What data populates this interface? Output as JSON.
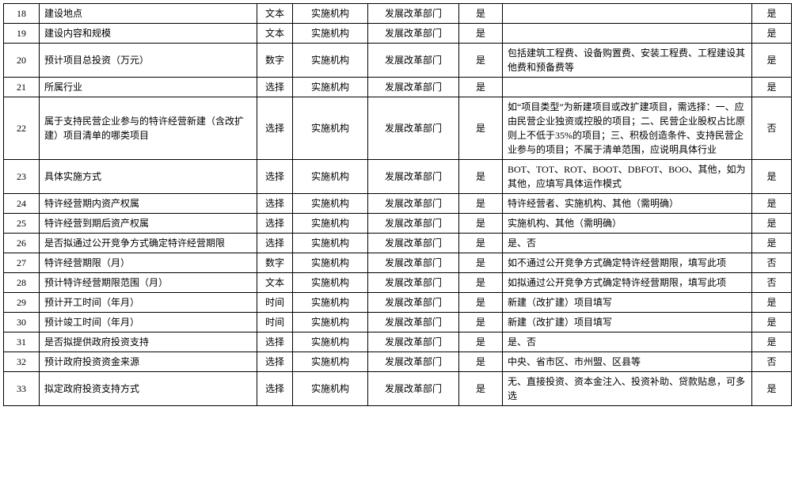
{
  "table": {
    "rows": [
      {
        "num": "18",
        "desc": "建设地点",
        "type": "文本",
        "org": "实施机构",
        "dept": "发展改革部门",
        "bool1": "是",
        "note": "",
        "bool2": "是"
      },
      {
        "num": "19",
        "desc": "建设内容和规模",
        "type": "文本",
        "org": "实施机构",
        "dept": "发展改革部门",
        "bool1": "是",
        "note": "",
        "bool2": "是"
      },
      {
        "num": "20",
        "desc": "预计项目总投资（万元）",
        "type": "数字",
        "org": "实施机构",
        "dept": "发展改革部门",
        "bool1": "是",
        "note": "包括建筑工程费、设备购置费、安装工程费、工程建设其他费和预备费等",
        "bool2": "是"
      },
      {
        "num": "21",
        "desc": "所属行业",
        "type": "选择",
        "org": "实施机构",
        "dept": "发展改革部门",
        "bool1": "是",
        "note": "",
        "bool2": "是"
      },
      {
        "num": "22",
        "desc": "属于支持民营企业参与的特许经营新建（含改扩建）项目清单的哪类项目",
        "type": "选择",
        "org": "实施机构",
        "dept": "发展改革部门",
        "bool1": "是",
        "note": "如“项目类型”为新建项目或改扩建项目，需选择：一、应由民营企业独资或控股的项目；二、民营企业股权占比原则上不低于35%的项目；三、积极创造条件、支持民营企业参与的项目；不属于清单范围，应说明具体行业",
        "bool2": "否"
      },
      {
        "num": "23",
        "desc": "具体实施方式",
        "type": "选择",
        "org": "实施机构",
        "dept": "发展改革部门",
        "bool1": "是",
        "note": "BOT、TOT、ROT、BOOT、DBFOT、BOO、其他，如为其他，应填写具体运作模式",
        "bool2": "是"
      },
      {
        "num": "24",
        "desc": "特许经营期内资产权属",
        "type": "选择",
        "org": "实施机构",
        "dept": "发展改革部门",
        "bool1": "是",
        "note": "特许经营者、实施机构、其他（需明确）",
        "bool2": "是"
      },
      {
        "num": "25",
        "desc": "特许经营到期后资产权属",
        "type": "选择",
        "org": "实施机构",
        "dept": "发展改革部门",
        "bool1": "是",
        "note": "实施机构、其他（需明确）",
        "bool2": "是"
      },
      {
        "num": "26",
        "desc": "是否拟通过公开竞争方式确定特许经营期限",
        "type": "选择",
        "org": "实施机构",
        "dept": "发展改革部门",
        "bool1": "是",
        "note": "是、否",
        "bool2": "是"
      },
      {
        "num": "27",
        "desc": "特许经营期限（月）",
        "type": "数字",
        "org": "实施机构",
        "dept": "发展改革部门",
        "bool1": "是",
        "note": "如不通过公开竞争方式确定特许经营期限，填写此项",
        "bool2": "否"
      },
      {
        "num": "28",
        "desc": "预计特许经营期限范围（月）",
        "type": "文本",
        "org": "实施机构",
        "dept": "发展改革部门",
        "bool1": "是",
        "note": "如拟通过公开竞争方式确定特许经营期限，填写此项",
        "bool2": "否"
      },
      {
        "num": "29",
        "desc": "预计开工时间（年月）",
        "type": "时间",
        "org": "实施机构",
        "dept": "发展改革部门",
        "bool1": "是",
        "note": "新建（改扩建）项目填写",
        "bool2": "是"
      },
      {
        "num": "30",
        "desc": "预计竣工时间（年月）",
        "type": "时间",
        "org": "实施机构",
        "dept": "发展改革部门",
        "bool1": "是",
        "note": "新建（改扩建）项目填写",
        "bool2": "是"
      },
      {
        "num": "31",
        "desc": "是否拟提供政府投资支持",
        "type": "选择",
        "org": "实施机构",
        "dept": "发展改革部门",
        "bool1": "是",
        "note": "是、否",
        "bool2": "是"
      },
      {
        "num": "32",
        "desc": "预计政府投资资金来源",
        "type": "选择",
        "org": "实施机构",
        "dept": "发展改革部门",
        "bool1": "是",
        "note": "中央、省市区、市州盟、区县等",
        "bool2": "否"
      },
      {
        "num": "33",
        "desc": "拟定政府投资支持方式",
        "type": "选择",
        "org": "实施机构",
        "dept": "发展改革部门",
        "bool1": "是",
        "note": "无、直接投资、资本金注入、投资补助、贷款贴息，可多选",
        "bool2": "是"
      }
    ]
  }
}
